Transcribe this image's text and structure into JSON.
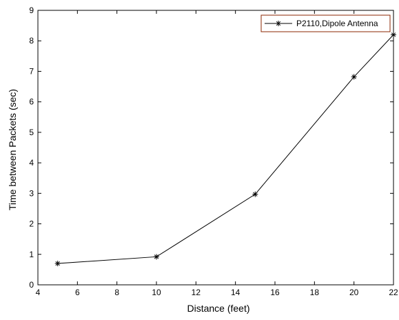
{
  "chart_data": {
    "type": "line",
    "xlabel": "Distance (feet)",
    "ylabel": "Time between Packets (sec)",
    "xlim": [
      4,
      22
    ],
    "ylim": [
      0,
      9
    ],
    "xticks": [
      "4",
      "6",
      "8",
      "10",
      "12",
      "14",
      "16",
      "18",
      "20",
      "22"
    ],
    "yticks": [
      "0",
      "1",
      "2",
      "3",
      "4",
      "5",
      "6",
      "7",
      "8",
      "9"
    ],
    "grid": false,
    "legend_position": "top-right",
    "series": [
      {
        "name": "P2110,Dipole Antenna",
        "color": "#000000",
        "marker": "asterisk",
        "x": [
          5,
          10,
          15,
          20,
          22
        ],
        "y": [
          0.7,
          0.92,
          2.97,
          6.82,
          8.2
        ]
      }
    ],
    "legend_border_color": "#8b2500"
  }
}
